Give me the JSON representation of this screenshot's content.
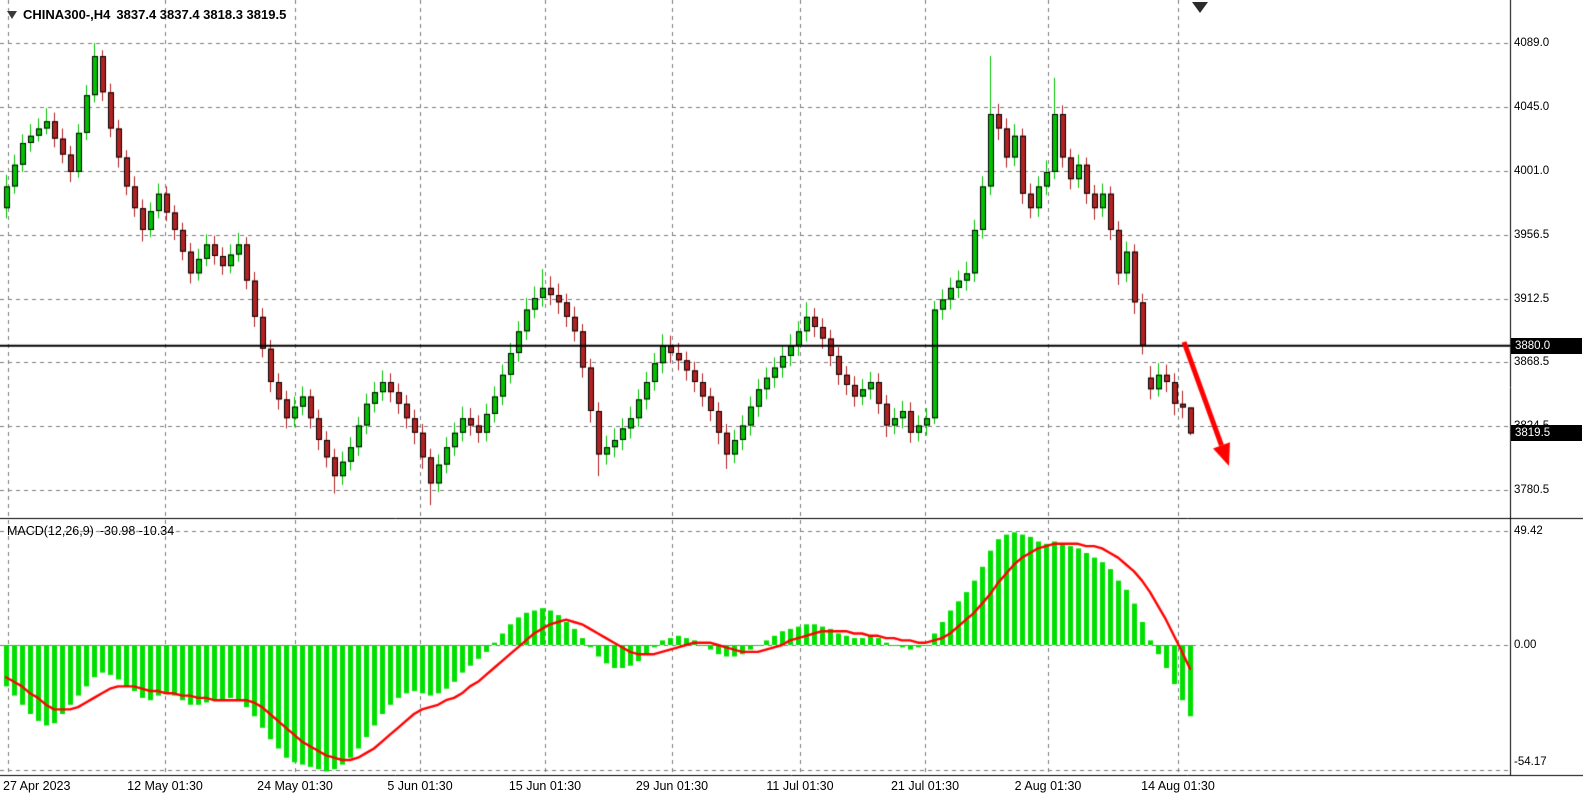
{
  "window": {
    "symbol_title": "CHINA300-,H4",
    "ohlc_text": "3837.4 3837.4 3818.3 3819.5"
  },
  "indicator": {
    "name": "MACD(12,26,9)",
    "values": "-30.98 -10.34"
  },
  "price_axis": {
    "ticks": [
      {
        "label": "4089.0",
        "value": 4089.0
      },
      {
        "label": "4045.0",
        "value": 4045.0
      },
      {
        "label": "4001.0",
        "value": 4001.0
      },
      {
        "label": "3956.5",
        "value": 3956.5
      },
      {
        "label": "3912.5",
        "value": 3912.5
      },
      {
        "label": "3868.5",
        "value": 3868.5
      },
      {
        "label": "3824.5",
        "value": 3824.5
      },
      {
        "label": "3780.5",
        "value": 3780.5
      }
    ]
  },
  "price_tags": [
    {
      "label": "3880.0",
      "value": 3880.0
    },
    {
      "label": "3819.5",
      "value": 3819.5
    }
  ],
  "macd_axis": {
    "ticks": [
      {
        "label": "49.42",
        "value": 49.42
      },
      {
        "label": "0.00",
        "value": 0
      },
      {
        "label": "-54.17",
        "value": -54.17
      }
    ]
  },
  "time_axis": {
    "labels": [
      "27 Apr 2023",
      "12 May 01:30",
      "24 May 01:30",
      "5 Jun 01:30",
      "15 Jun 01:30",
      "29 Jun 01:30",
      "11 Jul 01:30",
      "21 Jul 01:30",
      "2 Aug 01:30",
      "14 Aug 01:30"
    ]
  },
  "annotations": {
    "horizontal_line_price": 3880.0,
    "trend_arrow": "down"
  },
  "colors": {
    "bull": "#00C000",
    "bear": "#B22222",
    "macd_hist": "#00E000",
    "signal": "#FF0000",
    "grid": "#7d7d7d",
    "level_line": "#000000",
    "separator": "#000000",
    "arrow": "#FF0000",
    "tag_bg": "#000000",
    "tag_fg": "#FFFFFF"
  },
  "chart_data": {
    "type": "candlestick",
    "title": "CHINA300-,H4",
    "symbol": "CHINA300-",
    "timeframe": "H4",
    "legend": [
      "price candles",
      "MACD(12,26,9) histogram",
      "MACD signal line"
    ],
    "y_axis_range_main": [
      3761,
      4119
    ],
    "y_axis_range_macd": [
      -54.17,
      49.42
    ],
    "x_tick_labels": [
      "27 Apr 2023",
      "12 May 01:30",
      "24 May 01:30",
      "5 Jun 01:30",
      "15 Jun 01:30",
      "29 Jun 01:30",
      "11 Jul 01:30",
      "21 Jul 01:30",
      "2 Aug 01:30",
      "14 Aug 01:30"
    ],
    "grid": "dashed",
    "ohlc_format": [
      "open",
      "high",
      "low",
      "close"
    ],
    "candles": [
      [
        3975,
        3998,
        3968,
        3990
      ],
      [
        3990,
        4012,
        3985,
        4005
      ],
      [
        4005,
        4026,
        4000,
        4020
      ],
      [
        4020,
        4033,
        4014,
        4025
      ],
      [
        4025,
        4037,
        4021,
        4030
      ],
      [
        4030,
        4044,
        4026,
        4035
      ],
      [
        4035,
        4041,
        4017,
        4023
      ],
      [
        4023,
        4030,
        4006,
        4012
      ],
      [
        4012,
        4018,
        3993,
        4000
      ],
      [
        4000,
        4033,
        3996,
        4027
      ],
      [
        4027,
        4060,
        4022,
        4053
      ],
      [
        4053,
        4089,
        4048,
        4080
      ],
      [
        4080,
        4084,
        4049,
        4055
      ],
      [
        4055,
        4061,
        4024,
        4030
      ],
      [
        4030,
        4036,
        4003,
        4010
      ],
      [
        4010,
        4015,
        3984,
        3990
      ],
      [
        3990,
        3997,
        3969,
        3975
      ],
      [
        3975,
        3981,
        3952,
        3960
      ],
      [
        3960,
        3979,
        3955,
        3973
      ],
      [
        3973,
        3992,
        3968,
        3985
      ],
      [
        3985,
        3990,
        3966,
        3972
      ],
      [
        3972,
        3977,
        3953,
        3960
      ],
      [
        3960,
        3965,
        3939,
        3945
      ],
      [
        3945,
        3951,
        3923,
        3930
      ],
      [
        3930,
        3947,
        3925,
        3940
      ],
      [
        3940,
        3957,
        3935,
        3950
      ],
      [
        3950,
        3956,
        3936,
        3942
      ],
      [
        3942,
        3948,
        3929,
        3935
      ],
      [
        3935,
        3950,
        3930,
        3943
      ],
      [
        3943,
        3958,
        3938,
        3950
      ],
      [
        3950,
        3955,
        3919,
        3925
      ],
      [
        3925,
        3931,
        3893,
        3900
      ],
      [
        3900,
        3906,
        3872,
        3878
      ],
      [
        3878,
        3884,
        3848,
        3855
      ],
      [
        3855,
        3861,
        3836,
        3843
      ],
      [
        3843,
        3849,
        3823,
        3830
      ],
      [
        3830,
        3845,
        3824,
        3838
      ],
      [
        3838,
        3852,
        3832,
        3845
      ],
      [
        3845,
        3850,
        3823,
        3830
      ],
      [
        3830,
        3836,
        3808,
        3815
      ],
      [
        3815,
        3821,
        3796,
        3803
      ],
      [
        3803,
        3809,
        3778,
        3790
      ],
      [
        3790,
        3807,
        3784,
        3800
      ],
      [
        3800,
        3817,
        3794,
        3810
      ],
      [
        3810,
        3831,
        3804,
        3825
      ],
      [
        3825,
        3847,
        3819,
        3840
      ],
      [
        3840,
        3855,
        3834,
        3848
      ],
      [
        3848,
        3863,
        3842,
        3855
      ],
      [
        3855,
        3861,
        3841,
        3848
      ],
      [
        3848,
        3854,
        3833,
        3840
      ],
      [
        3840,
        3846,
        3823,
        3830
      ],
      [
        3830,
        3836,
        3812,
        3820
      ],
      [
        3820,
        3826,
        3795,
        3803
      ],
      [
        3803,
        3809,
        3770,
        3785
      ],
      [
        3785,
        3805,
        3779,
        3798
      ],
      [
        3798,
        3817,
        3792,
        3810
      ],
      [
        3810,
        3827,
        3804,
        3820
      ],
      [
        3820,
        3838,
        3814,
        3830
      ],
      [
        3830,
        3837,
        3818,
        3825
      ],
      [
        3825,
        3832,
        3813,
        3820
      ],
      [
        3820,
        3840,
        3814,
        3833
      ],
      [
        3833,
        3852,
        3827,
        3845
      ],
      [
        3845,
        3867,
        3839,
        3860
      ],
      [
        3860,
        3882,
        3854,
        3875
      ],
      [
        3875,
        3897,
        3869,
        3890
      ],
      [
        3890,
        3913,
        3884,
        3905
      ],
      [
        3905,
        3921,
        3899,
        3913
      ],
      [
        3913,
        3933,
        3907,
        3920
      ],
      [
        3920,
        3928,
        3908,
        3915
      ],
      [
        3915,
        3923,
        3902,
        3910
      ],
      [
        3910,
        3916,
        3893,
        3900
      ],
      [
        3900,
        3907,
        3883,
        3890
      ],
      [
        3890,
        3895,
        3858,
        3865
      ],
      [
        3865,
        3871,
        3827,
        3835
      ],
      [
        3835,
        3841,
        3790,
        3805
      ],
      [
        3805,
        3818,
        3798,
        3810
      ],
      [
        3810,
        3823,
        3803,
        3815
      ],
      [
        3815,
        3830,
        3808,
        3823
      ],
      [
        3823,
        3838,
        3816,
        3830
      ],
      [
        3830,
        3850,
        3824,
        3843
      ],
      [
        3843,
        3862,
        3836,
        3855
      ],
      [
        3855,
        3875,
        3849,
        3868
      ],
      [
        3868,
        3888,
        3861,
        3880
      ],
      [
        3880,
        3887,
        3868,
        3875
      ],
      [
        3875,
        3882,
        3863,
        3870
      ],
      [
        3870,
        3876,
        3856,
        3863
      ],
      [
        3863,
        3869,
        3848,
        3855
      ],
      [
        3855,
        3861,
        3838,
        3845
      ],
      [
        3845,
        3851,
        3828,
        3835
      ],
      [
        3835,
        3841,
        3812,
        3820
      ],
      [
        3820,
        3826,
        3795,
        3805
      ],
      [
        3805,
        3822,
        3799,
        3815
      ],
      [
        3815,
        3832,
        3808,
        3825
      ],
      [
        3825,
        3845,
        3818,
        3838
      ],
      [
        3838,
        3857,
        3831,
        3850
      ],
      [
        3850,
        3865,
        3843,
        3858
      ],
      [
        3858,
        3872,
        3851,
        3865
      ],
      [
        3865,
        3880,
        3858,
        3873
      ],
      [
        3873,
        3888,
        3866,
        3880
      ],
      [
        3880,
        3897,
        3873,
        3890
      ],
      [
        3890,
        3910,
        3883,
        3900
      ],
      [
        3900,
        3906,
        3886,
        3893
      ],
      [
        3893,
        3899,
        3878,
        3885
      ],
      [
        3885,
        3891,
        3866,
        3873
      ],
      [
        3873,
        3879,
        3853,
        3860
      ],
      [
        3860,
        3866,
        3846,
        3853
      ],
      [
        3853,
        3859,
        3838,
        3845
      ],
      [
        3845,
        3857,
        3839,
        3850
      ],
      [
        3850,
        3862,
        3843,
        3855
      ],
      [
        3855,
        3861,
        3833,
        3840
      ],
      [
        3840,
        3846,
        3817,
        3825
      ],
      [
        3825,
        3837,
        3819,
        3830
      ],
      [
        3830,
        3842,
        3823,
        3835
      ],
      [
        3835,
        3841,
        3813,
        3820
      ],
      [
        3820,
        3832,
        3814,
        3825
      ],
      [
        3825,
        3837,
        3818,
        3830
      ],
      [
        3830,
        3911,
        3826,
        3905
      ],
      [
        3905,
        3919,
        3898,
        3912
      ],
      [
        3912,
        3927,
        3905,
        3920
      ],
      [
        3920,
        3932,
        3913,
        3925
      ],
      [
        3925,
        3938,
        3918,
        3930
      ],
      [
        3930,
        3967,
        3924,
        3960
      ],
      [
        3960,
        3997,
        3954,
        3990
      ],
      [
        3990,
        4080,
        3984,
        4040
      ],
      [
        4040,
        4047,
        4022,
        4030
      ],
      [
        4030,
        4037,
        4003,
        4010
      ],
      [
        4010,
        4033,
        4004,
        4025
      ],
      [
        4025,
        4030,
        3978,
        3985
      ],
      [
        3985,
        3992,
        3968,
        3975
      ],
      [
        3975,
        3997,
        3969,
        3990
      ],
      [
        3990,
        4008,
        3984,
        4000
      ],
      [
        4000,
        4065,
        3995,
        4040
      ],
      [
        4040,
        4046,
        4003,
        4010
      ],
      [
        4010,
        4016,
        3988,
        3995
      ],
      [
        3995,
        4012,
        3989,
        4005
      ],
      [
        4005,
        4010,
        3978,
        3985
      ],
      [
        3985,
        3991,
        3967,
        3975
      ],
      [
        3975,
        3992,
        3969,
        3985
      ],
      [
        3985,
        3990,
        3953,
        3960
      ],
      [
        3960,
        3966,
        3922,
        3930
      ],
      [
        3930,
        3952,
        3924,
        3945
      ],
      [
        3945,
        3950,
        3902,
        3910
      ],
      [
        3910,
        3916,
        3874,
        3880
      ],
      [
        3858,
        3866,
        3843,
        3850
      ],
      [
        3850,
        3868,
        3845,
        3860
      ],
      [
        3860,
        3867,
        3848,
        3855
      ],
      [
        3855,
        3861,
        3832,
        3840
      ],
      [
        3840,
        3849,
        3830,
        3837.4
      ],
      [
        3837.4,
        3837.4,
        3818.3,
        3819.5
      ]
    ],
    "macd": {
      "params": "12,26,9",
      "current_macd": -30.98,
      "current_signal": -10.34,
      "histogram": [
        -18,
        -22,
        -26,
        -30,
        -33,
        -35,
        -34,
        -30,
        -26,
        -22,
        -18,
        -14,
        -12,
        -13,
        -15,
        -18,
        -20,
        -23,
        -24,
        -22,
        -21,
        -22,
        -24,
        -26,
        -26,
        -25,
        -24,
        -24,
        -23,
        -24,
        -27,
        -31,
        -36,
        -41,
        -45,
        -49,
        -51,
        -52,
        -53,
        -54,
        -55,
        -54,
        -52,
        -49,
        -45,
        -40,
        -35,
        -30,
        -26,
        -23,
        -21,
        -20,
        -21,
        -22,
        -21,
        -19,
        -16,
        -12,
        -9,
        -6,
        -3,
        1,
        5,
        9,
        12,
        14,
        15,
        16,
        15,
        13,
        10,
        7,
        3,
        -1,
        -5,
        -8,
        -10,
        -10,
        -9,
        -7,
        -4,
        -1,
        2,
        3,
        4,
        3,
        2,
        0,
        -2,
        -4,
        -5,
        -5,
        -4,
        -2,
        0,
        2,
        4,
        6,
        7,
        8,
        9,
        9,
        8,
        7,
        5,
        4,
        3,
        3,
        4,
        3,
        1,
        0,
        -1,
        -2,
        -1,
        0,
        5,
        10,
        15,
        19,
        23,
        28,
        34,
        41,
        46,
        48,
        49,
        48,
        47,
        45,
        44,
        45,
        44,
        43,
        42,
        40,
        38,
        36,
        33,
        28,
        24,
        18,
        10,
        2,
        -4,
        -10,
        -17,
        -24,
        -30.98
      ],
      "signal": [
        -14,
        -16,
        -18,
        -21,
        -23,
        -26,
        -28,
        -28,
        -28,
        -27,
        -25,
        -23,
        -21,
        -19,
        -18,
        -18,
        -18,
        -19,
        -20,
        -20,
        -21,
        -21,
        -22,
        -22,
        -23,
        -23,
        -24,
        -24,
        -24,
        -24,
        -24,
        -25,
        -27,
        -30,
        -33,
        -36,
        -39,
        -42,
        -44,
        -46,
        -48,
        -49,
        -50,
        -50,
        -49,
        -47,
        -45,
        -42,
        -39,
        -36,
        -33,
        -30,
        -28,
        -27,
        -26,
        -24,
        -23,
        -21,
        -18,
        -16,
        -13,
        -10,
        -7,
        -4,
        -1,
        2,
        5,
        7,
        9,
        10,
        11,
        10,
        9,
        7,
        5,
        3,
        1,
        -1,
        -3,
        -4,
        -4,
        -4,
        -3,
        -2,
        -1,
        0,
        1,
        1,
        1,
        0,
        -1,
        -2,
        -3,
        -3,
        -3,
        -2,
        -1,
        0,
        2,
        3,
        4,
        5,
        6,
        6,
        6,
        6,
        5,
        5,
        4,
        4,
        3,
        3,
        2,
        2,
        1,
        1,
        2,
        3,
        5,
        8,
        11,
        14,
        18,
        22,
        27,
        31,
        35,
        38,
        40,
        42,
        43,
        44,
        44,
        44,
        44,
        43,
        43,
        42,
        40,
        38,
        35,
        32,
        28,
        23,
        17,
        11,
        4,
        -3,
        -10.34
      ]
    }
  }
}
